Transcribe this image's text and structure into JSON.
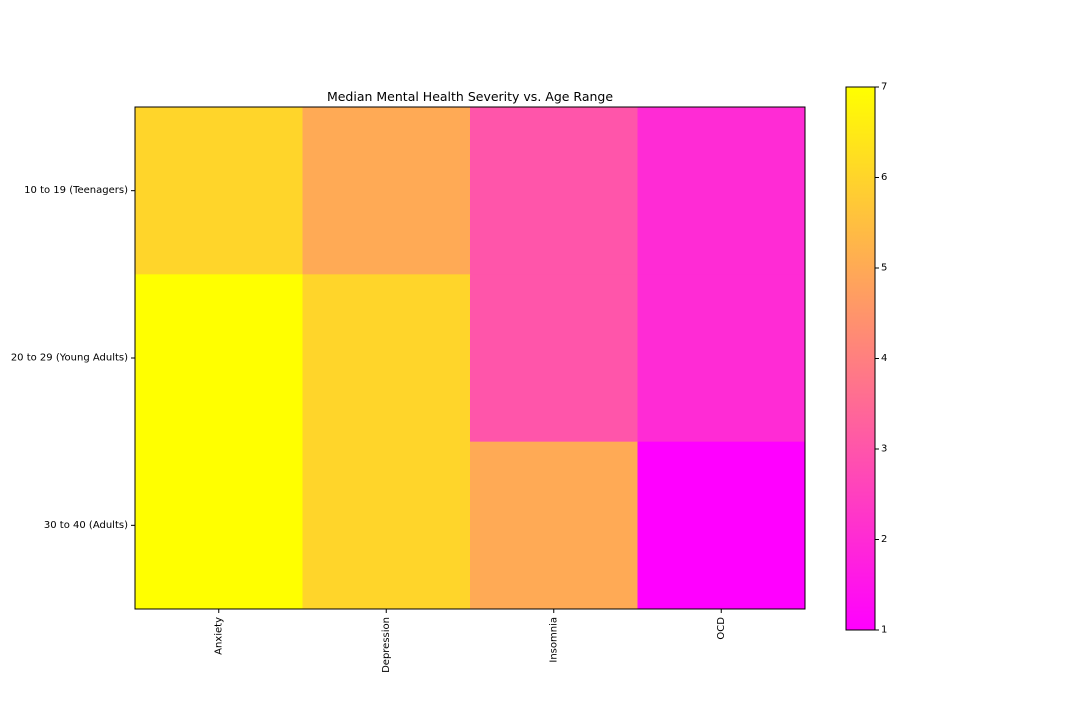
{
  "chart_data": {
    "type": "heatmap",
    "title": "Median Mental Health Severity vs. Age Range",
    "xlabel": "",
    "ylabel": "",
    "x_categories": [
      "Anxiety",
      "Depression",
      "Insomnia",
      "OCD"
    ],
    "y_categories": [
      "10 to 19 (Teenagers)",
      "20 to 29 (Young Adults) ",
      "30 to 40 (Adults)"
    ],
    "values": [
      [
        6,
        5,
        3,
        2
      ],
      [
        7,
        6,
        3,
        2
      ],
      [
        7,
        6,
        5,
        1
      ]
    ],
    "colormap": "spring",
    "color_range": [
      1,
      7
    ],
    "colorbar_ticks": [
      "1",
      "2",
      "3",
      "4",
      "5",
      "6",
      "7"
    ],
    "colorbar": true,
    "grid": false
  }
}
